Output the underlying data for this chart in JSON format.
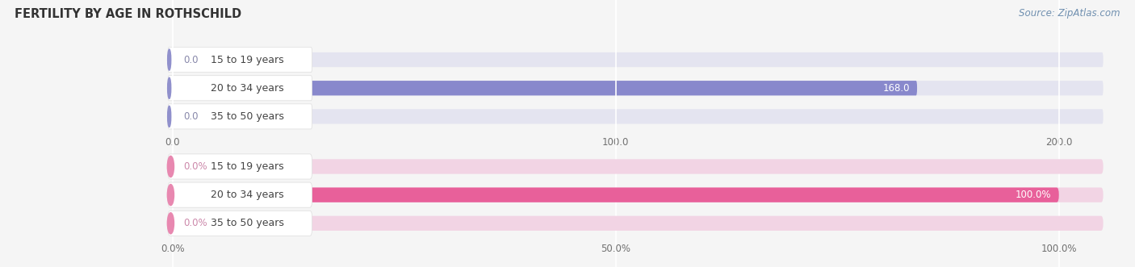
{
  "title": "Fertility by Age in Rothschild",
  "source": "Source: ZipAtlas.com",
  "categories": [
    "15 to 19 years",
    "20 to 34 years",
    "35 to 50 years"
  ],
  "count_values": [
    0.0,
    168.0,
    0.0
  ],
  "pct_values": [
    0.0,
    100.0,
    0.0
  ],
  "count_xlim_max": 210,
  "pct_xlim_max": 105,
  "count_xticks": [
    0.0,
    100.0,
    200.0
  ],
  "pct_xticks": [
    0.0,
    50.0,
    100.0
  ],
  "count_xtick_labels": [
    "0.0",
    "100.0",
    "200.0"
  ],
  "pct_xtick_labels": [
    "0.0%",
    "50.0%",
    "100.0%"
  ],
  "bar_color_blue": "#8888cc",
  "bar_color_blue_bg": "#e4e4f0",
  "bar_color_pink": "#e8609a",
  "bar_color_pink_bg": "#f2d4e4",
  "label_circle_blue": "#9090cc",
  "label_circle_pink": "#e888b0",
  "label_text_color": "#444444",
  "value_label_color_blue_nonzero": "#ffffff",
  "value_label_color_blue_zero": "#8888aa",
  "value_label_color_pink_nonzero": "#ffffff",
  "value_label_color_pink_zero": "#cc88aa",
  "title_color": "#333333",
  "source_color": "#7090b0",
  "background_color": "#f5f5f5",
  "bar_height": 0.52,
  "fig_width": 14.06,
  "fig_height": 3.31
}
